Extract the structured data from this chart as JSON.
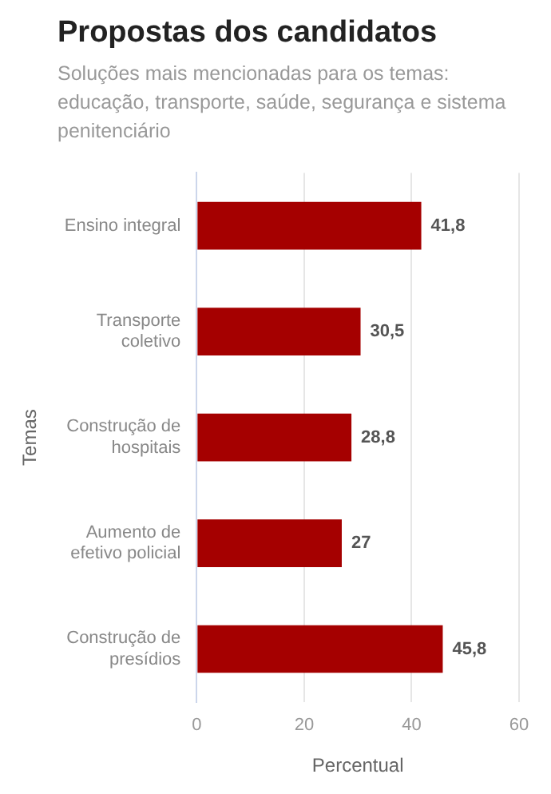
{
  "chart_data": {
    "type": "bar",
    "orientation": "horizontal",
    "title": "Propostas dos candidatos",
    "subtitle": "Soluções mais mencionadas para os temas: educação, transporte, saúde, segurança e sistema penitenciário",
    "xlabel": "Percentual",
    "ylabel": "Temas",
    "categories": [
      "Ensino integral",
      "Transporte coletivo",
      "Construção de hospitais",
      "Aumento de efetivo policial",
      "Construção de presídios"
    ],
    "values": [
      41.8,
      30.5,
      28.8,
      27,
      45.8
    ],
    "value_labels": [
      "41,8",
      "30,5",
      "28,8",
      "27",
      "45,8"
    ],
    "color": "#a50000",
    "xlim": [
      0,
      60
    ],
    "xticks": [
      0,
      20,
      40,
      60
    ],
    "grid": "x",
    "legend": false
  }
}
